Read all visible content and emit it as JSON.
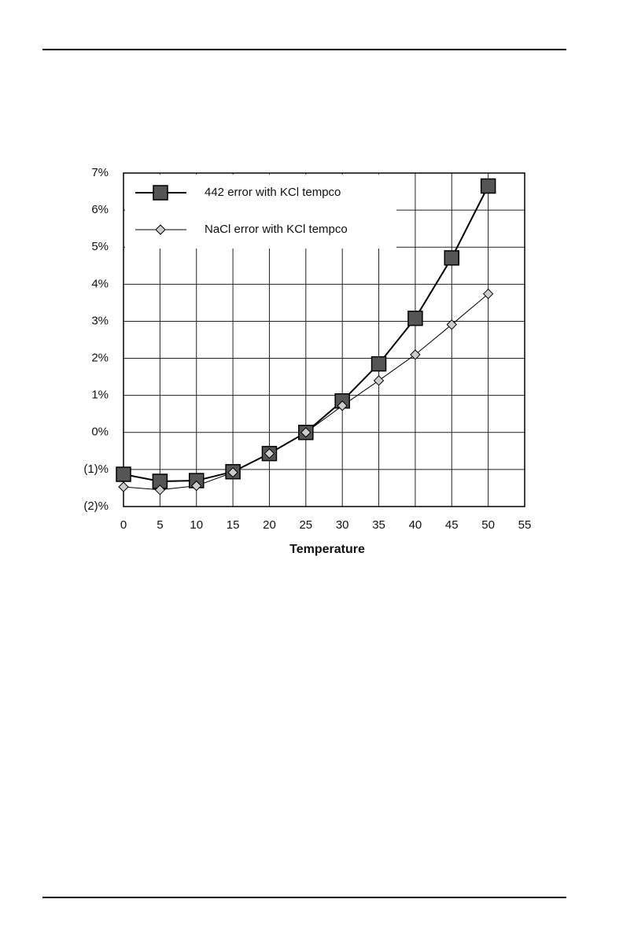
{
  "chart_data": {
    "type": "line",
    "x_label": "Temperature",
    "x": [
      0,
      5,
      10,
      15,
      20,
      25,
      30,
      35,
      40,
      45,
      50
    ],
    "series": [
      {
        "name": "442 error with KCl tempco",
        "color": "#555555",
        "marker": "square",
        "values": [
          -1.13,
          -1.32,
          -1.3,
          -1.06,
          -0.57,
          0,
          0.85,
          1.85,
          3.08,
          4.71,
          6.65
        ]
      },
      {
        "name": "NaCl error with KCl tempco",
        "color": "#cccccc",
        "marker": "diamond",
        "values": [
          -1.47,
          -1.55,
          -1.44,
          -1.08,
          -0.57,
          0,
          0.72,
          1.4,
          2.1,
          2.91,
          3.74
        ]
      }
    ],
    "xlim": [
      0,
      55
    ],
    "xticks": [
      0,
      5,
      10,
      15,
      20,
      25,
      30,
      35,
      40,
      45,
      50,
      55
    ],
    "ylim": [
      -2,
      7
    ],
    "yticks": [
      {
        "value": -2,
        "label": "(2)%"
      },
      {
        "value": -1,
        "label": "(1)%"
      },
      {
        "value": 0,
        "label": "0%"
      },
      {
        "value": 1,
        "label": "1%"
      },
      {
        "value": 2,
        "label": "2%"
      },
      {
        "value": 3,
        "label": "3%"
      },
      {
        "value": 4,
        "label": "4%"
      },
      {
        "value": 5,
        "label": "5%"
      },
      {
        "value": 6,
        "label": "6%"
      },
      {
        "value": 7,
        "label": "7%"
      }
    ],
    "grid": true,
    "legend": "top-left"
  }
}
